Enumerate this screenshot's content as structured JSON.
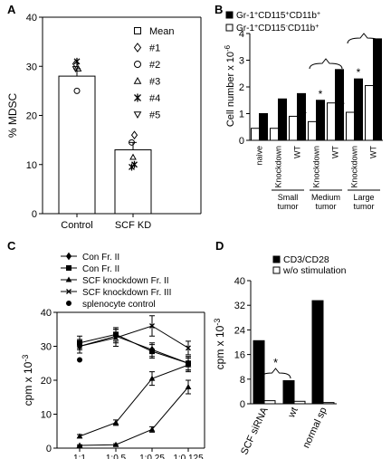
{
  "chart_data": [
    {
      "panel": "A",
      "type": "bar",
      "ylabel": "% MDSC",
      "ylim": [
        0,
        40
      ],
      "yticks": [
        0,
        10,
        20,
        30,
        40
      ],
      "categories": [
        "Control",
        "SCF KD"
      ],
      "values": [
        28,
        13
      ],
      "errors": [
        1.5,
        1.5
      ],
      "legend_position": "top-right",
      "legend": [
        {
          "label": "Mean",
          "marker": "open-square"
        },
        {
          "label": "#1",
          "marker": "open-diamond"
        },
        {
          "label": "#2",
          "marker": "open-circle"
        },
        {
          "label": "#3",
          "marker": "open-triangle"
        },
        {
          "label": "#4",
          "marker": "asterisk"
        },
        {
          "label": "#5",
          "marker": "open-triangle-down"
        }
      ],
      "points": [
        {
          "category": "Control",
          "marker": "open-diamond",
          "value": 30.5
        },
        {
          "category": "Control",
          "marker": "asterisk",
          "value": 31
        },
        {
          "category": "Control",
          "marker": "open-triangle",
          "value": 29.5
        },
        {
          "category": "Control",
          "marker": "open-triangle-down",
          "value": 29.5
        },
        {
          "category": "Control",
          "marker": "open-circle",
          "value": 25
        },
        {
          "category": "SCF KD",
          "marker": "open-diamond",
          "value": 16
        },
        {
          "category": "SCF KD",
          "marker": "open-circle",
          "value": 14.5
        },
        {
          "category": "SCF KD",
          "marker": "open-triangle",
          "value": 11.5
        },
        {
          "category": "SCF KD",
          "marker": "asterisk",
          "value": 10
        },
        {
          "category": "SCF KD",
          "marker": "asterisk",
          "value": 9.5
        }
      ]
    },
    {
      "panel": "B",
      "type": "bar",
      "ylabel": "Cell number x 10",
      "ylabel_superscript": "-6",
      "ylim": [
        0,
        4
      ],
      "yticks": [
        0,
        1,
        2,
        3,
        4
      ],
      "categories": [
        "naive",
        "Knockdown",
        "WT",
        "Knockdown",
        "WT",
        "Knockdown",
        "WT"
      ],
      "groups": [
        {
          "label_lines": [
            "Small",
            "tumor"
          ],
          "from": 1,
          "to": 2
        },
        {
          "label_lines": [
            "Medium",
            "tumor"
          ],
          "from": 3,
          "to": 4
        },
        {
          "label_lines": [
            "Large",
            "tumor"
          ],
          "from": 5,
          "to": 6
        }
      ],
      "legend_position": "top-left",
      "series": [
        {
          "name": "Gr-1+CD115+CD11b+",
          "name_parts": [
            "Gr-1",
            "+",
            "CD115",
            "+",
            "CD11b",
            "+"
          ],
          "color": "#000000",
          "values": [
            1.0,
            1.55,
            1.75,
            1.5,
            2.65,
            2.3,
            3.8
          ]
        },
        {
          "name": "Gr-1+CD115-CD11b+",
          "name_parts": [
            "Gr-1",
            "+",
            "CD115",
            "-",
            "CD11b",
            "+"
          ],
          "color": "#ffffff",
          "values": [
            0.45,
            0.45,
            0.9,
            0.7,
            1.4,
            1.05,
            2.05
          ]
        }
      ],
      "asterisks": [
        "*",
        "*",
        "*",
        "*"
      ],
      "asterisk_at": [
        {
          "category": 3,
          "series": 1,
          "label": "*"
        },
        {
          "category": 3,
          "series": 0,
          "label": "*"
        },
        {
          "category": 5,
          "series": 1,
          "label": "*"
        },
        {
          "category": 5,
          "series": 0,
          "label": "*"
        }
      ]
    },
    {
      "panel": "C",
      "type": "line",
      "ylabel": "cpm x 10",
      "ylabel_superscript": "-3",
      "ylim": [
        0,
        40
      ],
      "yticks": [
        0,
        10,
        20,
        30,
        40
      ],
      "categories": [
        "1:1",
        "1:0.5",
        "1:0.25",
        "1:0.125"
      ],
      "legend_position": "top",
      "series": [
        {
          "name": "Con Fr. II",
          "marker": "diamond",
          "values": [
            30,
            33,
            29,
            25
          ],
          "errors": [
            2,
            2,
            2,
            2
          ]
        },
        {
          "name": "Con Fr. II",
          "marker": "square",
          "values": [
            31,
            33.5,
            28.5,
            25
          ],
          "errors": [
            2,
            2,
            2,
            2
          ]
        },
        {
          "name": "SCF knockdown Fr. II",
          "marker": "triangle",
          "values": [
            3.5,
            7.5,
            20.5,
            24.5
          ],
          "errors": [
            0.5,
            0.8,
            2,
            2
          ]
        },
        {
          "name": "SCF knockdown Fr. III",
          "marker": "x",
          "values": [
            30,
            32.5,
            36,
            29.5
          ],
          "errors": [
            2,
            2.5,
            3,
            2
          ]
        },
        {
          "name": "splenocyte control",
          "marker": "dot",
          "values": [
            26,
            null,
            null,
            null
          ],
          "errors": [
            0,
            0,
            0,
            0
          ]
        }
      ],
      "extra_series": [
        {
          "name": "",
          "marker": "triangle",
          "values": [
            0.8,
            1.0,
            5.5,
            18
          ],
          "errors": [
            0.2,
            0.3,
            0.8,
            2
          ]
        }
      ]
    },
    {
      "panel": "D",
      "type": "bar",
      "ylabel": "cpm x 10",
      "ylabel_superscript": "-3",
      "ylim": [
        0,
        40
      ],
      "yticks": [
        0,
        8,
        16,
        24,
        32,
        40
      ],
      "categories": [
        "SCF siRNA",
        "wt",
        "normal sp"
      ],
      "legend_position": "top-right",
      "series": [
        {
          "name": "CD3/CD28",
          "color": "#000000",
          "values": [
            20.5,
            7.5,
            33.5
          ]
        },
        {
          "name": "w/o stimulation",
          "color": "#ffffff",
          "values": [
            1.0,
            0.8,
            0.4
          ]
        }
      ],
      "annotation": "*"
    }
  ]
}
